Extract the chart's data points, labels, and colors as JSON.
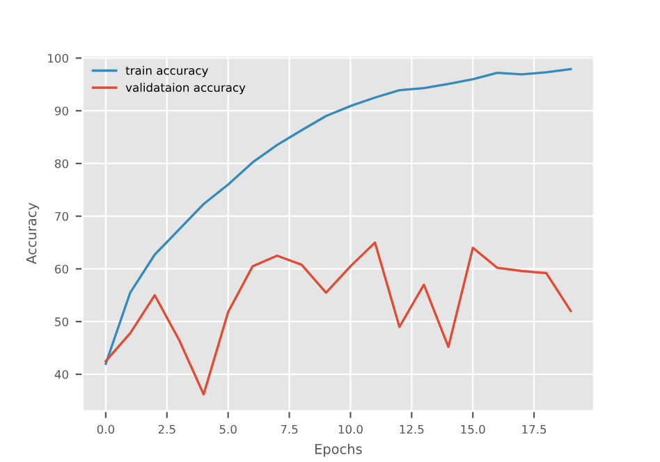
{
  "chart_data": {
    "type": "line",
    "xlabel": "Epochs",
    "ylabel": "Accuracy",
    "x": [
      0,
      1,
      2,
      3,
      4,
      5,
      6,
      7,
      8,
      9,
      10,
      11,
      12,
      13,
      14,
      15,
      16,
      17,
      18,
      19
    ],
    "series": [
      {
        "name": "train accuracy",
        "color": "#348abd",
        "values": [
          42,
          55.5,
          62.7,
          67.5,
          72.3,
          76,
          80.2,
          83.5,
          86.3,
          89,
          90.9,
          92.5,
          93.9,
          94.3,
          95.1,
          96,
          97.2,
          96.9,
          97.3,
          97.9
        ]
      },
      {
        "name": "validataion accuracy",
        "color": "#e24a33",
        "values": [
          42.5,
          47.8,
          55,
          46.5,
          36.2,
          51.8,
          60.5,
          62.5,
          60.8,
          55.5,
          60.5,
          65,
          49,
          57,
          45.2,
          64,
          60.2,
          59.6,
          59.2,
          52
        ]
      }
    ],
    "xlim": [
      -0.95,
      19.95
    ],
    "ylim": [
      33,
      100.5
    ],
    "xticks": [
      {
        "value": 0,
        "label": "0.0"
      },
      {
        "value": 2.5,
        "label": "2.5"
      },
      {
        "value": 5,
        "label": "5.0"
      },
      {
        "value": 7.5,
        "label": "7.5"
      },
      {
        "value": 10,
        "label": "10.0"
      },
      {
        "value": 12.5,
        "label": "12.5"
      },
      {
        "value": 15,
        "label": "15.0"
      },
      {
        "value": 17.5,
        "label": "17.5"
      }
    ],
    "yticks": [
      40,
      50,
      60,
      70,
      80,
      90,
      100
    ],
    "grid": true,
    "legend": "top left"
  }
}
